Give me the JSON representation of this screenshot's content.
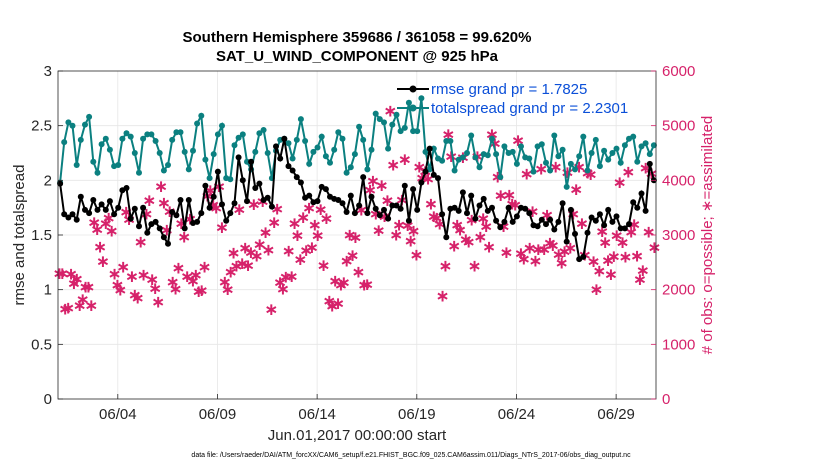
{
  "chart_data": {
    "type": "line",
    "title": "Southern Hemisphere 359686 / 361058 = 99.620%",
    "subtitle": "SAT_U_WIND_COMPONENT @ 925 hPa",
    "xlabel": "Jun.01,2017 00:00:00 start",
    "ylabel_left": "rmse and totalspread",
    "ylabel_right": "# of obs: o=possible; ∗=assimilated",
    "x_tick_labels": [
      "06/04",
      "06/09",
      "06/14",
      "06/19",
      "06/24",
      "06/29"
    ],
    "x_tick_days": [
      4,
      9,
      14,
      19,
      24,
      29
    ],
    "xlim": [
      1,
      31
    ],
    "ylim_left": [
      0,
      3
    ],
    "ylim_right": [
      0,
      6000
    ],
    "yticks_left": [
      "0",
      "0.5",
      "1",
      "1.5",
      "2",
      "2.5",
      "3"
    ],
    "yticks_right": [
      "0",
      "1000",
      "2000",
      "3000",
      "4000",
      "5000",
      "6000"
    ],
    "legend": [
      {
        "label": "rmse grand pr = 1.7825",
        "color": "#000000"
      },
      {
        "label": "totalspread grand pr = 2.2301",
        "color": "#0b8080"
      }
    ],
    "colors": {
      "rmse": "#000000",
      "spread": "#0b8080",
      "obs": "#d6226a",
      "axis_right": "#d6226a"
    },
    "series": [
      {
        "name": "rmse",
        "values": [
          1.97,
          1.69,
          1.66,
          1.69,
          1.64,
          1.85,
          1.73,
          1.7,
          1.82,
          1.73,
          1.78,
          1.73,
          1.81,
          1.69,
          1.75,
          1.91,
          1.93,
          1.65,
          1.74,
          1.58,
          1.75,
          1.52,
          1.6,
          1.62,
          1.56,
          1.48,
          1.42,
          1.71,
          1.68,
          1.82,
          1.56,
          1.82,
          1.61,
          1.62,
          1.7,
          1.95,
          1.75,
          1.85,
          2.08,
          1.78,
          1.63,
          1.7,
          1.79,
          2.21,
          2.0,
          1.81,
          2.17,
          1.93,
          1.97,
          1.82,
          1.84,
          1.76,
          2.31,
          2.2,
          2.38,
          2.13,
          2.09,
          2.03,
          1.98,
          1.84,
          1.86,
          1.8,
          1.81,
          1.94,
          1.92,
          1.85,
          1.83,
          1.82,
          1.79,
          1.71,
          1.86,
          1.7,
          1.77,
          2.03,
          1.7,
          1.85,
          1.74,
          1.68,
          1.73,
          1.65,
          1.77,
          1.77,
          1.74,
          1.95,
          1.63,
          1.92,
          1.73,
          1.98,
          2.08,
          2.29,
          2.05,
          2.02,
          1.69,
          1.48,
          1.74,
          1.75,
          1.72,
          1.89,
          1.7,
          1.86,
          1.65,
          1.77,
          1.83,
          1.72,
          1.75,
          1.63,
          1.57,
          1.62,
          1.75,
          1.62,
          1.67,
          1.75,
          1.74,
          1.7,
          1.59,
          1.58,
          1.64,
          1.6,
          1.64,
          1.55,
          1.62,
          1.79,
          1.44,
          1.73,
          1.51,
          1.28,
          1.3,
          1.52,
          1.66,
          1.63,
          1.69,
          1.59,
          1.73,
          1.62,
          1.67,
          1.56,
          1.56,
          1.6,
          1.8,
          1.75,
          1.88,
          1.72,
          2.15,
          2.0
        ]
      },
      {
        "name": "totalspread",
        "values": [
          1.98,
          2.35,
          2.53,
          2.5,
          2.14,
          2.37,
          2.51,
          2.58,
          2.17,
          2.07,
          2.33,
          2.38,
          2.28,
          2.13,
          2.14,
          2.38,
          2.43,
          2.4,
          2.25,
          2.07,
          2.38,
          2.42,
          2.42,
          2.36,
          2.25,
          2.09,
          2.14,
          2.37,
          2.44,
          2.44,
          2.26,
          2.1,
          2.27,
          2.52,
          2.59,
          2.19,
          2.02,
          2.24,
          2.42,
          2.5,
          2.02,
          2.01,
          2.32,
          2.39,
          2.42,
          2.17,
          2.1,
          2.26,
          2.43,
          2.46,
          2.25,
          2.02,
          2.27,
          2.37,
          2.38,
          2.34,
          2.2,
          2.37,
          2.56,
          2.36,
          2.15,
          2.26,
          2.3,
          2.4,
          2.22,
          2.16,
          2.28,
          2.44,
          2.38,
          2.07,
          2.12,
          2.24,
          2.49,
          2.37,
          2.1,
          2.28,
          2.61,
          2.56,
          2.53,
          2.29,
          2.51,
          2.6,
          2.45,
          2.48,
          2.71,
          2.45,
          2.45,
          2.75,
          2.26,
          2.1,
          2.29,
          2.2,
          2.18,
          2.36,
          2.36,
          2.09,
          2.19,
          2.21,
          2.25,
          2.41,
          2.21,
          2.12,
          2.24,
          2.23,
          2.38,
          2.24,
          2.03,
          2.31,
          2.25,
          2.26,
          2.15,
          2.31,
          2.21,
          2.2,
          2.08,
          2.31,
          2.33,
          2.16,
          2.09,
          2.41,
          2.22,
          2.28,
          1.94,
          2.15,
          2.1,
          2.22,
          2.4,
          2.09,
          2.25,
          2.37,
          2.13,
          2.27,
          2.19,
          2.25,
          2.29,
          2.16,
          2.32,
          2.38,
          2.4,
          2.17,
          2.31,
          2.34,
          2.24,
          2.32
        ]
      },
      {
        "name": "obs_assimilated",
        "axis": "right",
        "values": [
          2340,
          2340,
          1690,
          1710,
          2330,
          2160,
          2240,
          1760,
          1870,
          2090,
          2090,
          1760,
          3270,
          3150,
          2830,
          2560,
          3260,
          3360,
          3120,
          2330,
          2130,
          2040,
          2460,
          3470,
          3330,
          2290,
          1950,
          1890,
          2920,
          2310,
          3430,
          3680,
          2230,
          2070,
          1820,
          3930,
          3630,
          3140,
          3480,
          2190,
          2060,
          2440,
          3260,
          3010,
          2290,
          3340,
          2200,
          2310,
          2010,
          2030,
          2460,
          3760,
          3860,
          3590,
          3540,
          3930,
          3180,
          2190,
          2050,
          2370,
          2720,
          2480,
          3510,
          2520,
          2810,
          2490,
          2730,
          3600,
          2660,
          2870,
          3660,
          3090,
          2770,
          1680,
          3270,
          3520,
          2180,
          2060,
          2280,
          2750,
          2290,
          3260,
          3040,
          2600,
          3370,
          2760,
          3540,
          2820,
          3230,
          3040,
          3510,
          2490,
          3350,
          1840,
          1750,
          2200,
          1790,
          2130,
          2180,
          2570,
          3050,
          2670,
          3000,
          2370,
          3500,
          2130,
          2140,
          3870,
          4030,
          3430,
          3130,
          3950,
          3380,
          3680,
          5310,
          4330,
          3050,
          3230,
          3690,
          4430,
          3220,
          2940,
          3120,
          2680,
          4290,
          4090,
          4210,
          4070,
          3610,
          3380,
          3360,
          3250,
          1930,
          2480,
          4880,
          4480,
          2840,
          3230,
          3140,
          4460,
          2960,
          2920,
          3320,
          2480,
          4480,
          3010,
          3350,
          3200,
          2830,
          4880,
          4720,
          4110,
          3770,
          3200,
          2730,
          3780,
          3610,
          3590,
          4770,
          2710,
          2610,
          4160,
          2810,
          3480,
          2570,
          2780,
          4250,
          2780,
          3410,
          2900,
          2850,
          4290,
          2690,
          2530,
          2740,
          4190,
          2810,
          3430,
          3880,
          4290,
          3260,
          2680,
          4180,
          4150,
          2560,
          2050,
          2390,
          3110,
          2910,
          2580,
          2320,
          2650,
          3040,
          4010,
          2910,
          2640,
          4200,
          3100,
          3240,
          2660,
          2230,
          2400,
          4270,
          3100,
          4170,
          2820
        ]
      }
    ]
  },
  "footnote": "data file: /Users/raeder/DAI/ATM_forcXX/CAM6_setup/f.e21.FHIST_BGC.f09_025.CAM6assim.011/Diags_NTrS_2017-06/obs_diag_output.nc"
}
